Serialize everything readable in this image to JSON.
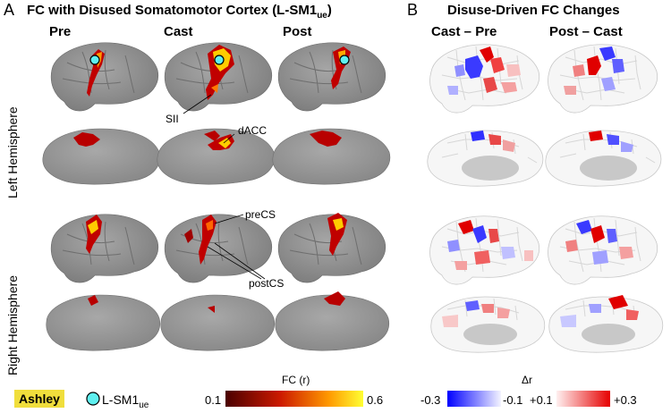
{
  "panel_a": {
    "letter": "A",
    "title": "FC with Disused Somatomotor Cortex (L-SM1",
    "title_sub": "ue",
    "title_end": ")",
    "columns": [
      "Pre",
      "Cast",
      "Post"
    ],
    "rows": [
      "Left Hemisphere",
      "Right Hemisphere"
    ],
    "annotations": {
      "sii": "SII",
      "dacc": "dACC",
      "precs": "preCS",
      "postcs": "postCS"
    }
  },
  "panel_b": {
    "letter": "B",
    "title": "Disuse-Driven FC Changes",
    "columns": [
      "Cast – Pre",
      "Post – Cast"
    ]
  },
  "legend": {
    "subject": "Ashley",
    "seed_label": "L-SM1",
    "seed_sub": "ue",
    "fc_label": "FC (r)",
    "fc_min": "0.1",
    "fc_max": "0.6",
    "delta_label": "Δr",
    "delta_ticks": [
      "-0.3",
      "-0.1",
      "+0.1",
      "+0.3"
    ]
  },
  "colors": {
    "brain": "#8c8c8c",
    "sulcus": "#707070",
    "fc_low": "#7a0000",
    "fc_mid": "#e64a00",
    "fc_high": "#ffee00",
    "neg": "#1a1aff",
    "pos": "#e60000",
    "seed": "#5ff0f0"
  }
}
